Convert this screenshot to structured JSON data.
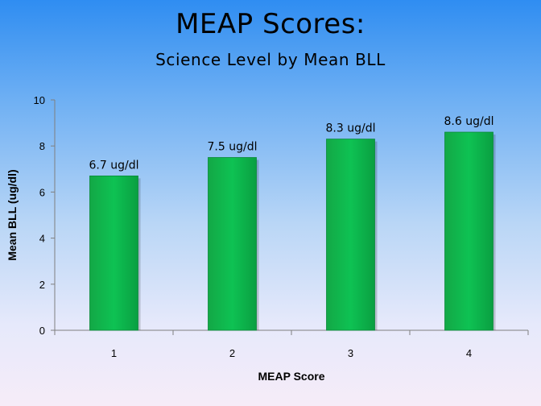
{
  "slide": {
    "title": "MEAP Scores:",
    "subtitle": "Science Level by Mean BLL"
  },
  "chart_data": {
    "type": "bar",
    "categories": [
      "1",
      "2",
      "3",
      "4"
    ],
    "values": [
      6.7,
      7.5,
      8.3,
      8.6
    ],
    "data_labels": [
      "6.7 ug/dl",
      "7.5 ug/dl",
      "8.3 ug/dl",
      "8.6 ug/dl"
    ],
    "xlabel": "MEAP Score",
    "ylabel": "Mean BLL (ug/dl)",
    "ylim": [
      0,
      10
    ],
    "yticks": [
      0,
      2,
      4,
      6,
      8,
      10
    ],
    "grid": false,
    "bar_color": "#0ab54c"
  }
}
